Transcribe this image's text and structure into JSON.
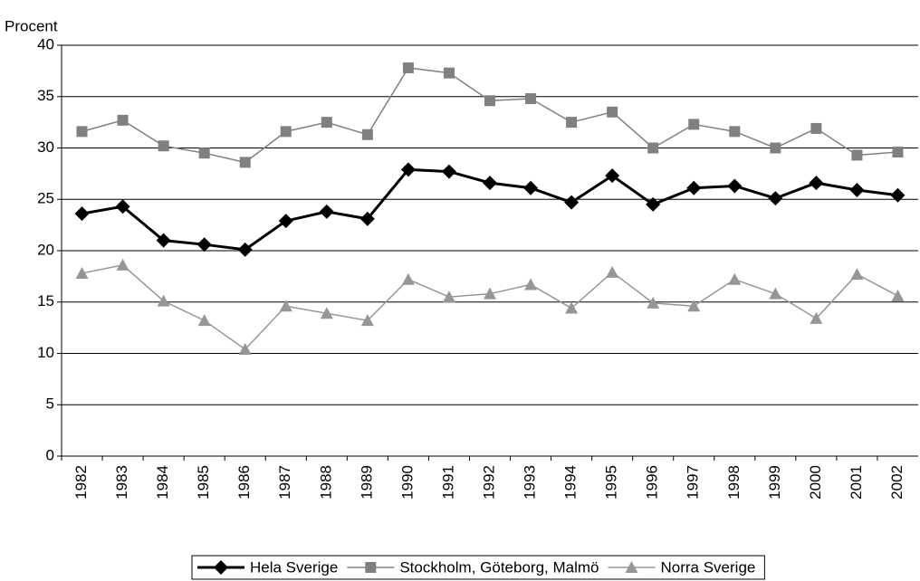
{
  "chart_data": {
    "type": "line",
    "y_label": "Procent",
    "categories": [
      "1982",
      "1983",
      "1984",
      "1985",
      "1986",
      "1987",
      "1988",
      "1989",
      "1990",
      "1991",
      "1992",
      "1993",
      "1994",
      "1995",
      "1996",
      "1997",
      "1998",
      "1999",
      "2000",
      "2001",
      "2002"
    ],
    "series": [
      {
        "name": "Hela Sverige",
        "color": "#000000",
        "marker": "diamond",
        "values": [
          23.6,
          24.3,
          21.0,
          20.6,
          20.1,
          22.9,
          23.8,
          23.1,
          27.9,
          27.7,
          26.6,
          26.1,
          24.7,
          27.3,
          24.5,
          26.1,
          26.3,
          25.1,
          26.6,
          25.9,
          25.4
        ]
      },
      {
        "name": "Stockholm, Göteborg, Malmö",
        "color": "#808080",
        "marker": "square",
        "values": [
          31.6,
          32.7,
          30.2,
          29.5,
          28.6,
          31.6,
          32.5,
          31.3,
          37.8,
          37.3,
          34.6,
          34.8,
          32.5,
          33.5,
          30.0,
          32.3,
          31.6,
          30.0,
          31.9,
          29.3,
          29.6
        ]
      },
      {
        "name": "Norra Sverige",
        "color": "#969696",
        "marker": "triangle",
        "values": [
          17.8,
          18.6,
          15.1,
          13.2,
          10.4,
          14.6,
          13.9,
          13.2,
          17.2,
          15.5,
          15.8,
          16.7,
          14.4,
          17.9,
          14.9,
          14.6,
          17.2,
          15.8,
          13.4,
          17.7,
          15.6
        ]
      }
    ],
    "ylim": [
      0,
      40
    ],
    "yticks": [
      0,
      5,
      10,
      15,
      20,
      25,
      30,
      35,
      40
    ],
    "grid": true,
    "legend": "bottom"
  }
}
